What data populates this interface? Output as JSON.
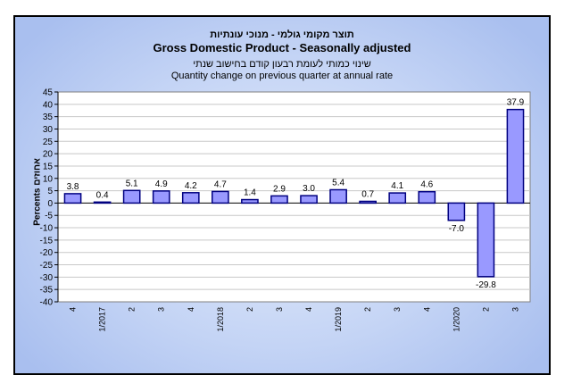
{
  "colors": {
    "bar_fill": "#9999ff",
    "bar_stroke": "#000080",
    "grid": "#c8c8c8",
    "plot_bg": "#ffffff"
  },
  "chart_data": {
    "type": "bar",
    "title_he": "תוצר מקומי גולמי - מנוכי עונתיות",
    "title": "Gross Domestic Product - Seasonally adjusted",
    "subtitle_he": "שינוי כמותי לעומת רבעון קודם בחישוב שנתי",
    "subtitle": "Quantity change on previous quarter at annual rate",
    "ylabel": "Percents אחוזים",
    "xlabel": "",
    "ylim": [
      -40,
      45
    ],
    "ytick_step": 5,
    "grid": true,
    "categories": [
      "4",
      "1/2017",
      "2",
      "3",
      "4",
      "1/2018",
      "2",
      "3",
      "4",
      "1/2019",
      "2",
      "3",
      "4",
      "1/2020",
      "2",
      "3"
    ],
    "values": [
      3.8,
      0.4,
      5.1,
      4.9,
      4.2,
      4.7,
      1.4,
      2.9,
      3.0,
      5.4,
      0.7,
      4.1,
      4.6,
      -7.0,
      -29.8,
      37.9
    ],
    "data_labels": [
      "3.8",
      "0.4",
      "5.1",
      "4.9",
      "4.2",
      "4.7",
      "1.4",
      "2.9",
      "3.0",
      "5.4",
      "0.7",
      "4.1",
      "4.6",
      "-7.0",
      "-29.8",
      "37.9"
    ]
  }
}
